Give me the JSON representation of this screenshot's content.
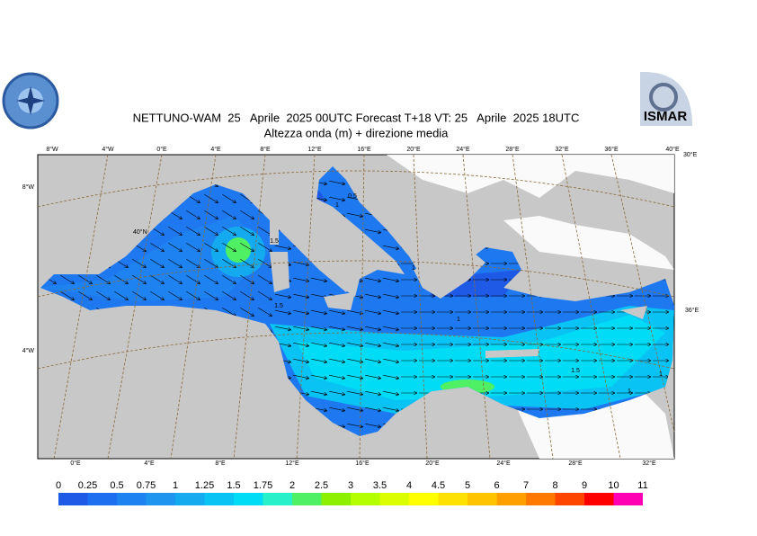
{
  "header": {
    "title": "NETTUNO-WAM  25   Aprile  2025 00UTC Forecast T+18 VT: 25   Aprile  2025 18UTC",
    "subtitle": "Altezza onda (m) + direzione media",
    "logo_text": "ISMAR"
  },
  "map": {
    "top_labels": [
      "8°W",
      "4°W",
      "0°E",
      "4°E",
      "8°E",
      "12°E",
      "16°E",
      "20°E",
      "24°E",
      "28°E",
      "32°E",
      "36°E",
      "40°E"
    ],
    "bottom_labels": [
      "0°E",
      "4°E",
      "8°E",
      "12°E",
      "16°E",
      "20°E",
      "24°E",
      "28°E",
      "32°E"
    ],
    "left_labels": [
      "8°W",
      "4°W"
    ],
    "right_labels": [
      "30°E",
      "36°E"
    ],
    "inner_labels": [
      "40°N"
    ],
    "contour_labels": [
      "0.5",
      "1",
      "1.5",
      "1",
      "1.5",
      "1",
      "1.5",
      "1",
      "1"
    ]
  },
  "colorbar": {
    "levels": [
      0,
      0.25,
      0.5,
      0.75,
      1,
      1.25,
      1.5,
      1.75,
      2,
      2.5,
      3,
      3.5,
      4,
      4.5,
      5,
      6,
      7,
      8,
      9,
      10,
      11
    ],
    "colors": [
      "#1e5ae6",
      "#1e6ef0",
      "#1e82f0",
      "#1e96f0",
      "#14aaf0",
      "#0ac3f5",
      "#00dcf5",
      "#28f0c8",
      "#50f064",
      "#8cf000",
      "#b4ff00",
      "#dcff00",
      "#ffff00",
      "#ffe100",
      "#ffc300",
      "#ffa000",
      "#ff7800",
      "#ff4600",
      "#ff0000",
      "#ff00b4"
    ]
  }
}
